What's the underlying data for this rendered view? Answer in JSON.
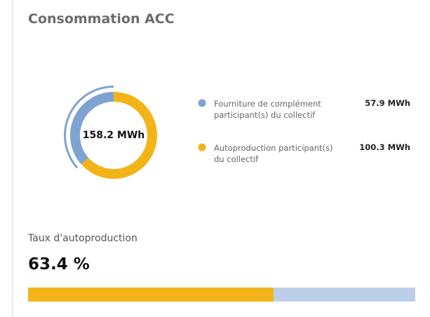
{
  "chart_data": {
    "type": "donut",
    "title": "Consommation ACC",
    "center_text": "158.2 MWh",
    "series": [
      {
        "name": "Fourniture de complément participant(s) du collectif",
        "color": "#7fa3d1",
        "value": 57.9,
        "value_label": "57.9 MWh"
      },
      {
        "name": "Autoproduction participant(s) du collectif",
        "color": "#f2b418",
        "value": 100.3,
        "value_label": "100.3 MWh"
      }
    ]
  },
  "progress": {
    "label": "Taux d'autoproduction",
    "value": 63.4,
    "value_label": "63.4 %",
    "xlim": [
      0,
      100
    ],
    "color": "#f2b418",
    "track_color": "#bccfe8"
  }
}
